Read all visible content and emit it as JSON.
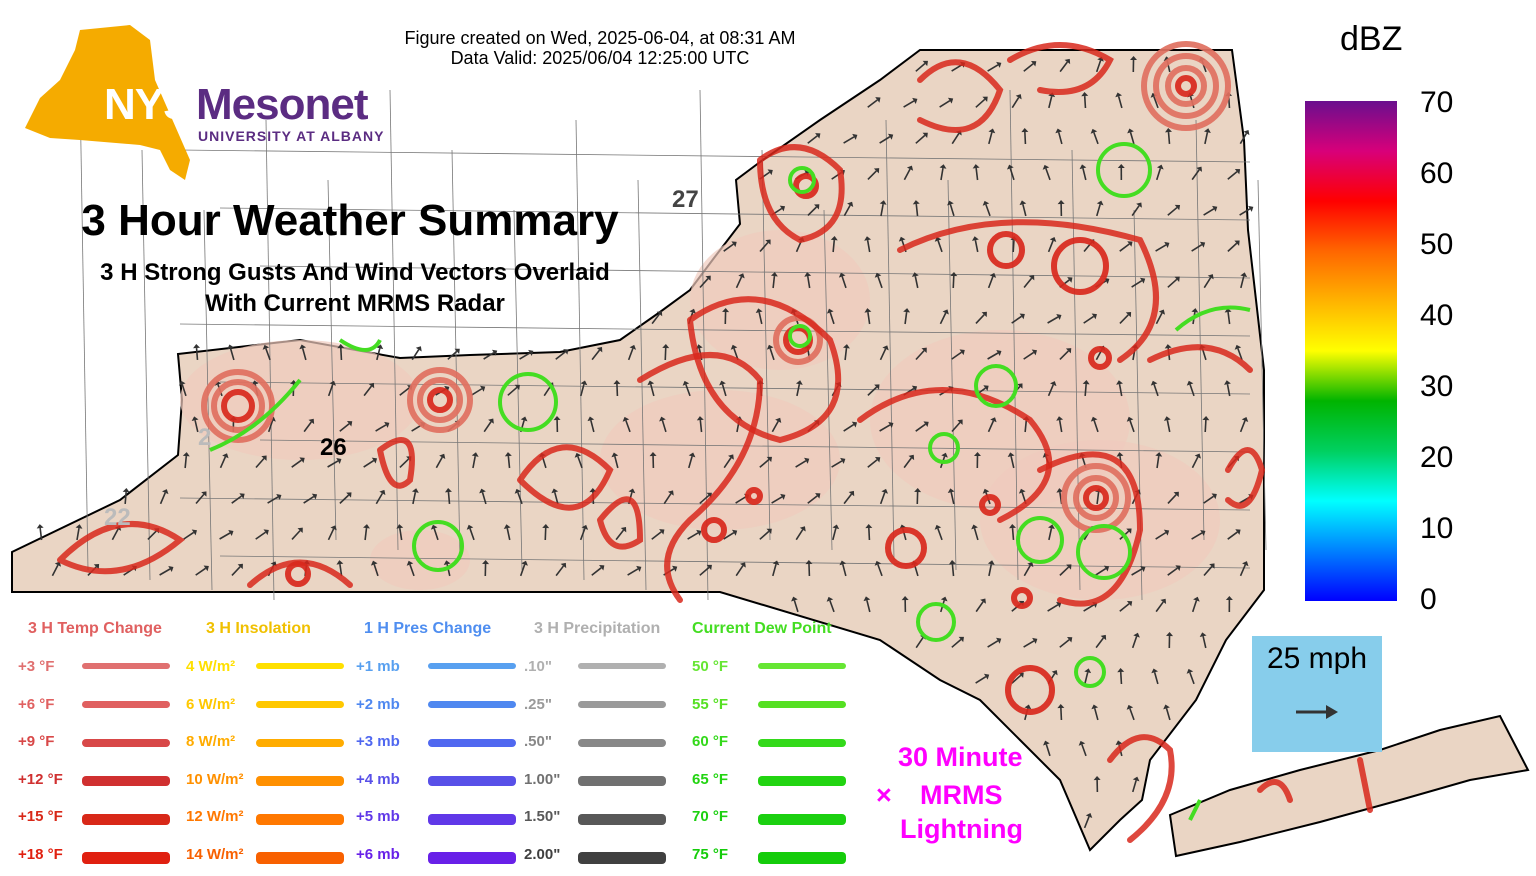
{
  "header": {
    "created": "Figure created on Wed, 2025-06-04, at 08:31 AM",
    "valid": "Data Valid: 2025/06/04 12:25:00 UTC"
  },
  "logo": {
    "nys": "NYS",
    "mesonet": "Mesonet",
    "university": "UNIVERSITY AT ALBANY",
    "gold": "#f5ab00",
    "purple": "#5b2c82"
  },
  "titles": {
    "main": "3 Hour Weather Summary",
    "sub1": "3 H Strong Gusts And Wind Vectors Overlaid",
    "sub2": "With Current MRMS Radar"
  },
  "colorbar": {
    "unit": "dBZ",
    "ticks": [
      "70",
      "60",
      "50",
      "40",
      "30",
      "20",
      "10",
      "0"
    ],
    "colors": [
      "#6a0f8e",
      "#d8007a",
      "#ff0000",
      "#ff6600",
      "#ffb300",
      "#ffff00",
      "#00b400",
      "#00d060",
      "#00ffff",
      "#0080ff",
      "#0000ff"
    ]
  },
  "wind_scale": {
    "label": "25 mph",
    "arrow": "arrow-right-icon"
  },
  "lightning": {
    "line1": "30 Minute",
    "line2": "MRMS",
    "line3": "Lightning",
    "marker": "×",
    "color": "#ff00ff"
  },
  "map_labels": {
    "count_26": "26",
    "count_27": "27",
    "count_22": "22",
    "count_2": "2"
  },
  "legend": {
    "temp": {
      "title": "3 H Temp Change",
      "color": "#e06060",
      "items": [
        {
          "label": "+3 °F",
          "color": "#e07070"
        },
        {
          "label": "+6 °F",
          "color": "#e06060"
        },
        {
          "label": "+9 °F",
          "color": "#d84848"
        },
        {
          "label": "+12 °F",
          "color": "#d03030"
        },
        {
          "label": "+15 °F",
          "color": "#d82818"
        },
        {
          "label": "+18 °F",
          "color": "#e02010"
        }
      ]
    },
    "insolation": {
      "title": "3 H Insolation",
      "color": "#f0c000",
      "items": [
        {
          "label": "4 W/m²",
          "color": "#ffe000"
        },
        {
          "label": "6 W/m²",
          "color": "#ffc800"
        },
        {
          "label": "8 W/m²",
          "color": "#ffac00"
        },
        {
          "label": "10 W/m²",
          "color": "#ff9000"
        },
        {
          "label": "12 W/m²",
          "color": "#ff7800"
        },
        {
          "label": "14 W/m²",
          "color": "#f86000"
        }
      ]
    },
    "pressure": {
      "title": "1 H Pres Change",
      "color": "#4f8ef0",
      "items": [
        {
          "label": "+1 mb",
          "color": "#58a0f0"
        },
        {
          "label": "+2 mb",
          "color": "#4f88f0"
        },
        {
          "label": "+3 mb",
          "color": "#5068f0"
        },
        {
          "label": "+4 mb",
          "color": "#5850e8"
        },
        {
          "label": "+5 mb",
          "color": "#6038e8"
        },
        {
          "label": "+6 mb",
          "color": "#6820e8"
        }
      ]
    },
    "precip": {
      "title": "3 H Precipitation",
      "color": "#b0b0b0",
      "items": [
        {
          "label": ".10\"",
          "color": "#b0b0b0"
        },
        {
          "label": ".25\"",
          "color": "#9a9a9a"
        },
        {
          "label": ".50\"",
          "color": "#888888"
        },
        {
          "label": "1.00\"",
          "color": "#707070"
        },
        {
          "label": "1.50\"",
          "color": "#585858"
        },
        {
          "label": "2.00\"",
          "color": "#404040"
        }
      ]
    },
    "dewpoint": {
      "title": "Current Dew Point",
      "color": "#44dd22",
      "items": [
        {
          "label": "50 °F",
          "color": "#66e633"
        },
        {
          "label": "55 °F",
          "color": "#55e022"
        },
        {
          "label": "60 °F",
          "color": "#33d91a"
        },
        {
          "label": "65 °F",
          "color": "#22d411"
        },
        {
          "label": "70 °F",
          "color": "#1bd010"
        },
        {
          "label": "75 °F",
          "color": "#14cc0a"
        }
      ]
    }
  },
  "map": {
    "land_fill": "#ead5c4",
    "warm_fill": "#efcbbd",
    "contour_red": "#d8281c",
    "contour_light": "#e07060",
    "dew_green": "#44dd22"
  }
}
